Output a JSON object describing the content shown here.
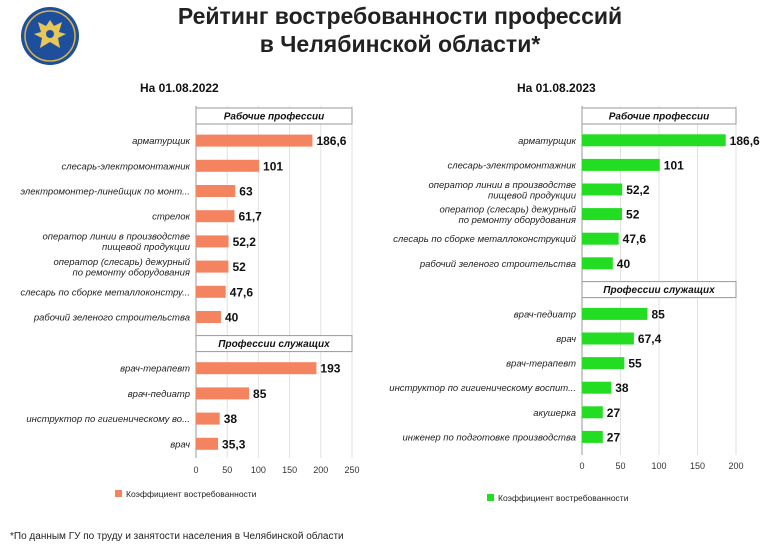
{
  "title_line1": "Рейтинг востребованности профессий",
  "title_line2": "в Челябинской области*",
  "footnote": "*По данным ГУ по труду и занятости населения в Челябинской области",
  "chart_data": [
    {
      "type": "bar",
      "orientation": "horizontal",
      "date_label": "На 01.08.2022",
      "color": "#f4845f",
      "xlim": [
        0,
        250
      ],
      "ticks": [
        0,
        50,
        100,
        150,
        200,
        250
      ],
      "legend": "Коэффициент востребованности",
      "sections": [
        {
          "header": "Рабочие профессии",
          "items": [
            {
              "label": [
                "арматурщик"
              ],
              "value": 186.6,
              "value_text": "186,6"
            },
            {
              "label": [
                "слесарь-электромонтажник"
              ],
              "value": 101,
              "value_text": "101"
            },
            {
              "label": [
                "электромонтер-линейщик по монт..."
              ],
              "value": 63,
              "value_text": "63"
            },
            {
              "label": [
                "стрелок"
              ],
              "value": 61.7,
              "value_text": "61,7"
            },
            {
              "label": [
                "оператор линии в производстве",
                "пищевой продукции"
              ],
              "value": 52.2,
              "value_text": "52,2"
            },
            {
              "label": [
                "оператор (слесарь) дежурный",
                "по ремонту оборудования"
              ],
              "value": 52,
              "value_text": "52"
            },
            {
              "label": [
                "слесарь по сборке металлоконстру..."
              ],
              "value": 47.6,
              "value_text": "47,6"
            },
            {
              "label": [
                "рабочий зеленого строительства"
              ],
              "value": 40,
              "value_text": "40"
            }
          ]
        },
        {
          "header": "Профессии служащих",
          "items": [
            {
              "label": [
                "врач-терапевт"
              ],
              "value": 193,
              "value_text": "193"
            },
            {
              "label": [
                "врач-педиатр"
              ],
              "value": 85,
              "value_text": "85"
            },
            {
              "label": [
                "инструктор по гигиеническому во..."
              ],
              "value": 38,
              "value_text": "38"
            },
            {
              "label": [
                "врач"
              ],
              "value": 35.3,
              "value_text": "35,3"
            }
          ]
        }
      ]
    },
    {
      "type": "bar",
      "orientation": "horizontal",
      "date_label": "На 01.08.2023",
      "color": "#22dd22",
      "xlim": [
        0,
        200
      ],
      "ticks": [
        0,
        50,
        100,
        150,
        200
      ],
      "legend": "Коэффициент востребованности",
      "sections": [
        {
          "header": "Рабочие профессии",
          "items": [
            {
              "label": [
                "арматурщик"
              ],
              "value": 186.6,
              "value_text": "186,6"
            },
            {
              "label": [
                "слесарь-электромонтажник"
              ],
              "value": 101,
              "value_text": "101"
            },
            {
              "label": [
                "оператор линии в производстве",
                "пищевой продукции"
              ],
              "value": 52.2,
              "value_text": "52,2"
            },
            {
              "label": [
                "оператор (слесарь) дежурный",
                "по ремонту оборудования"
              ],
              "value": 52,
              "value_text": "52"
            },
            {
              "label": [
                "слесарь по сборке металлоконструкций"
              ],
              "value": 47.6,
              "value_text": "47,6"
            },
            {
              "label": [
                "рабочий зеленого строительства"
              ],
              "value": 40,
              "value_text": "40"
            }
          ]
        },
        {
          "header": "Профессии служащих",
          "items": [
            {
              "label": [
                "врач-педиатр"
              ],
              "value": 85,
              "value_text": "85"
            },
            {
              "label": [
                "врач"
              ],
              "value": 67.4,
              "value_text": "67,4"
            },
            {
              "label": [
                "врач-терапевт"
              ],
              "value": 55,
              "value_text": "55"
            },
            {
              "label": [
                "инструктор по гигиеническому воспит..."
              ],
              "value": 38,
              "value_text": "38"
            },
            {
              "label": [
                "акушерка"
              ],
              "value": 27,
              "value_text": "27"
            },
            {
              "label": [
                "инженер по подготовке производства"
              ],
              "value": 27,
              "value_text": "27"
            }
          ]
        }
      ]
    }
  ]
}
